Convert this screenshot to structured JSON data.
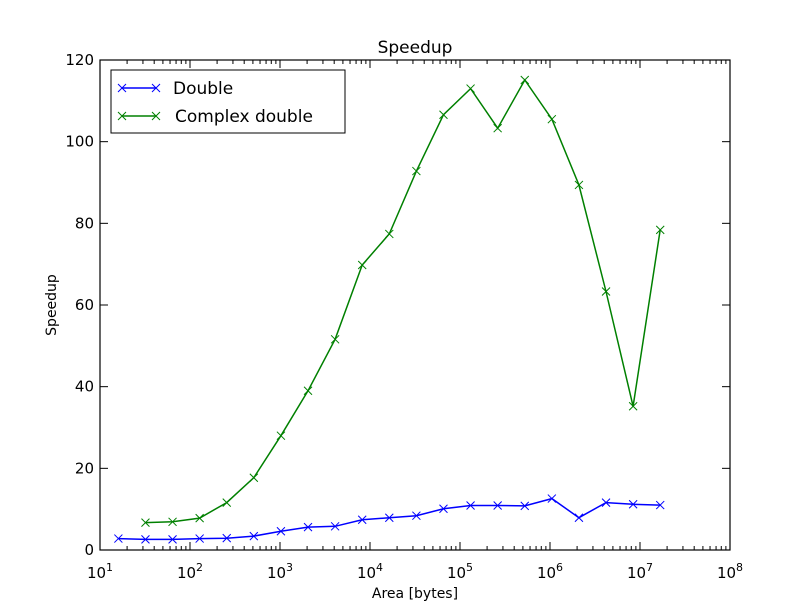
{
  "chart_data": {
    "type": "line",
    "title": "Speedup",
    "xlabel": "Area [bytes]",
    "ylabel": "Speedup",
    "xscale": "log",
    "xlim": [
      10,
      100000000
    ],
    "ylim": [
      0,
      120
    ],
    "grid": false,
    "legend_position": "upper left",
    "x_tick_labels": [
      "10^1",
      "10^2",
      "10^3",
      "10^4",
      "10^5",
      "10^6",
      "10^7",
      "10^8"
    ],
    "y_tick_labels": [
      "0",
      "20",
      "40",
      "60",
      "80",
      "100",
      "120"
    ],
    "series": [
      {
        "name": "Double",
        "color": "#0000ff",
        "marker": "x",
        "x": [
          16,
          32,
          64,
          128,
          256,
          512,
          1024,
          2048,
          4096,
          8192,
          16384,
          32768,
          65536,
          131072,
          262144,
          524288,
          1048576,
          2097152,
          4194304,
          8388608,
          16777216
        ],
        "values": [
          2.8,
          2.6,
          2.6,
          2.8,
          2.9,
          3.4,
          4.6,
          5.6,
          5.8,
          7.4,
          7.9,
          8.4,
          10.1,
          10.9,
          10.9,
          10.8,
          12.6,
          7.9,
          11.6,
          11.2,
          11.0
        ]
      },
      {
        "name": "Complex double",
        "color": "#008000",
        "marker": "x",
        "x": [
          32,
          64,
          128,
          256,
          512,
          1024,
          2048,
          4096,
          8192,
          16384,
          32768,
          65536,
          131072,
          262144,
          524288,
          1048576,
          2097152,
          4194304,
          8388608,
          16777216
        ],
        "values": [
          6.7,
          6.9,
          7.8,
          11.6,
          17.7,
          28.0,
          39.0,
          51.6,
          69.8,
          77.4,
          92.8,
          106.6,
          113.0,
          103.3,
          115.1,
          105.5,
          89.4,
          63.3,
          35.2,
          78.4
        ]
      }
    ]
  }
}
